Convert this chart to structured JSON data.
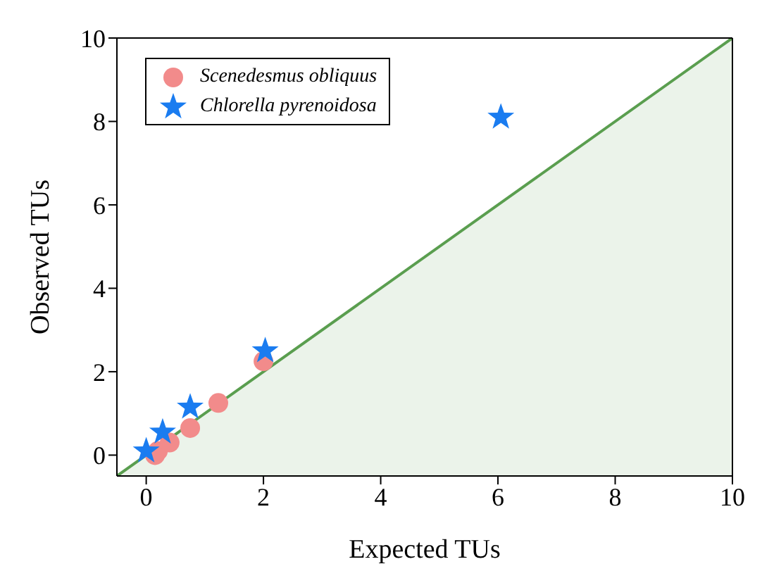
{
  "chart_data": {
    "type": "scatter",
    "xlabel": "Expected TUs",
    "ylabel": "Observed TUs",
    "xlim": [
      -0.5,
      10
    ],
    "ylim": [
      -0.5,
      10
    ],
    "xticks": [
      0,
      2,
      4,
      6,
      8,
      10
    ],
    "yticks": [
      0,
      2,
      4,
      6,
      8,
      10
    ],
    "grid": false,
    "legend": "top left",
    "series": [
      {
        "type": "area",
        "color": "#5a9e4f",
        "x": [
          -0.5,
          10
        ],
        "values": [
          -0.5,
          10
        ]
      },
      {
        "name": "Scenedesmus obliquus",
        "color": "#f28b8b",
        "marker": "circle",
        "x": [
          0.15,
          0.2,
          0.4,
          0.75,
          1.23,
          2.0
        ],
        "values": [
          0.0,
          0.1,
          0.3,
          0.65,
          1.25,
          2.25
        ]
      },
      {
        "name": "Chlorella pyrenoidosa",
        "color": "#1a7cf0",
        "marker": "star",
        "x": [
          0.0,
          0.28,
          0.75,
          2.03,
          6.05
        ],
        "values": [
          0.1,
          0.55,
          1.15,
          2.5,
          8.1
        ]
      }
    ]
  }
}
